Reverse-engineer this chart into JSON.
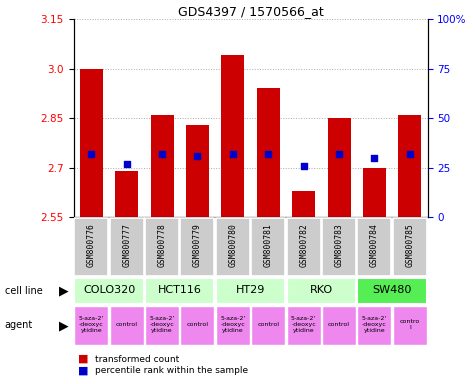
{
  "title": "GDS4397 / 1570566_at",
  "samples": [
    "GSM800776",
    "GSM800777",
    "GSM800778",
    "GSM800779",
    "GSM800780",
    "GSM800781",
    "GSM800782",
    "GSM800783",
    "GSM800784",
    "GSM800785"
  ],
  "red_values": [
    3.0,
    2.69,
    2.86,
    2.83,
    3.04,
    2.94,
    2.63,
    2.85,
    2.7,
    2.86
  ],
  "blue_values": [
    32,
    27,
    32,
    31,
    32,
    32,
    26,
    32,
    30,
    32
  ],
  "ylim": [
    2.55,
    3.15
  ],
  "yticks_left": [
    2.55,
    2.7,
    2.85,
    3.0,
    3.15
  ],
  "yticks_right": [
    0,
    25,
    50,
    75,
    100
  ],
  "cell_lines": [
    {
      "label": "COLO320",
      "cols": [
        0,
        1
      ],
      "color": "#ccffcc"
    },
    {
      "label": "HCT116",
      "cols": [
        2,
        3
      ],
      "color": "#ccffcc"
    },
    {
      "label": "HT29",
      "cols": [
        4,
        5
      ],
      "color": "#ccffcc"
    },
    {
      "label": "RKO",
      "cols": [
        6,
        7
      ],
      "color": "#ccffcc"
    },
    {
      "label": "SW480",
      "cols": [
        8,
        9
      ],
      "color": "#55ee55"
    }
  ],
  "agents": [
    {
      "label": "5-aza-2'\n-deoxyc\nytidine",
      "col": 0,
      "color": "#ee88ee"
    },
    {
      "label": "control",
      "col": 1,
      "color": "#ee88ee"
    },
    {
      "label": "5-aza-2'\n-deoxyc\nytidine",
      "col": 2,
      "color": "#ee88ee"
    },
    {
      "label": "control",
      "col": 3,
      "color": "#ee88ee"
    },
    {
      "label": "5-aza-2'\n-deoxyc\nytidine",
      "col": 4,
      "color": "#ee88ee"
    },
    {
      "label": "control",
      "col": 5,
      "color": "#ee88ee"
    },
    {
      "label": "5-aza-2'\n-deoxyc\nytidine",
      "col": 6,
      "color": "#ee88ee"
    },
    {
      "label": "control",
      "col": 7,
      "color": "#ee88ee"
    },
    {
      "label": "5-aza-2'\n-deoxyc\nytidine",
      "col": 8,
      "color": "#ee88ee"
    },
    {
      "label": "contro\nl",
      "col": 9,
      "color": "#ee88ee"
    }
  ],
  "bar_color": "#cc0000",
  "dot_color": "#0000cc",
  "baseline": 2.55,
  "bar_width": 0.65,
  "sample_bg_color": "#cccccc",
  "grid_color": "#aaaaaa"
}
